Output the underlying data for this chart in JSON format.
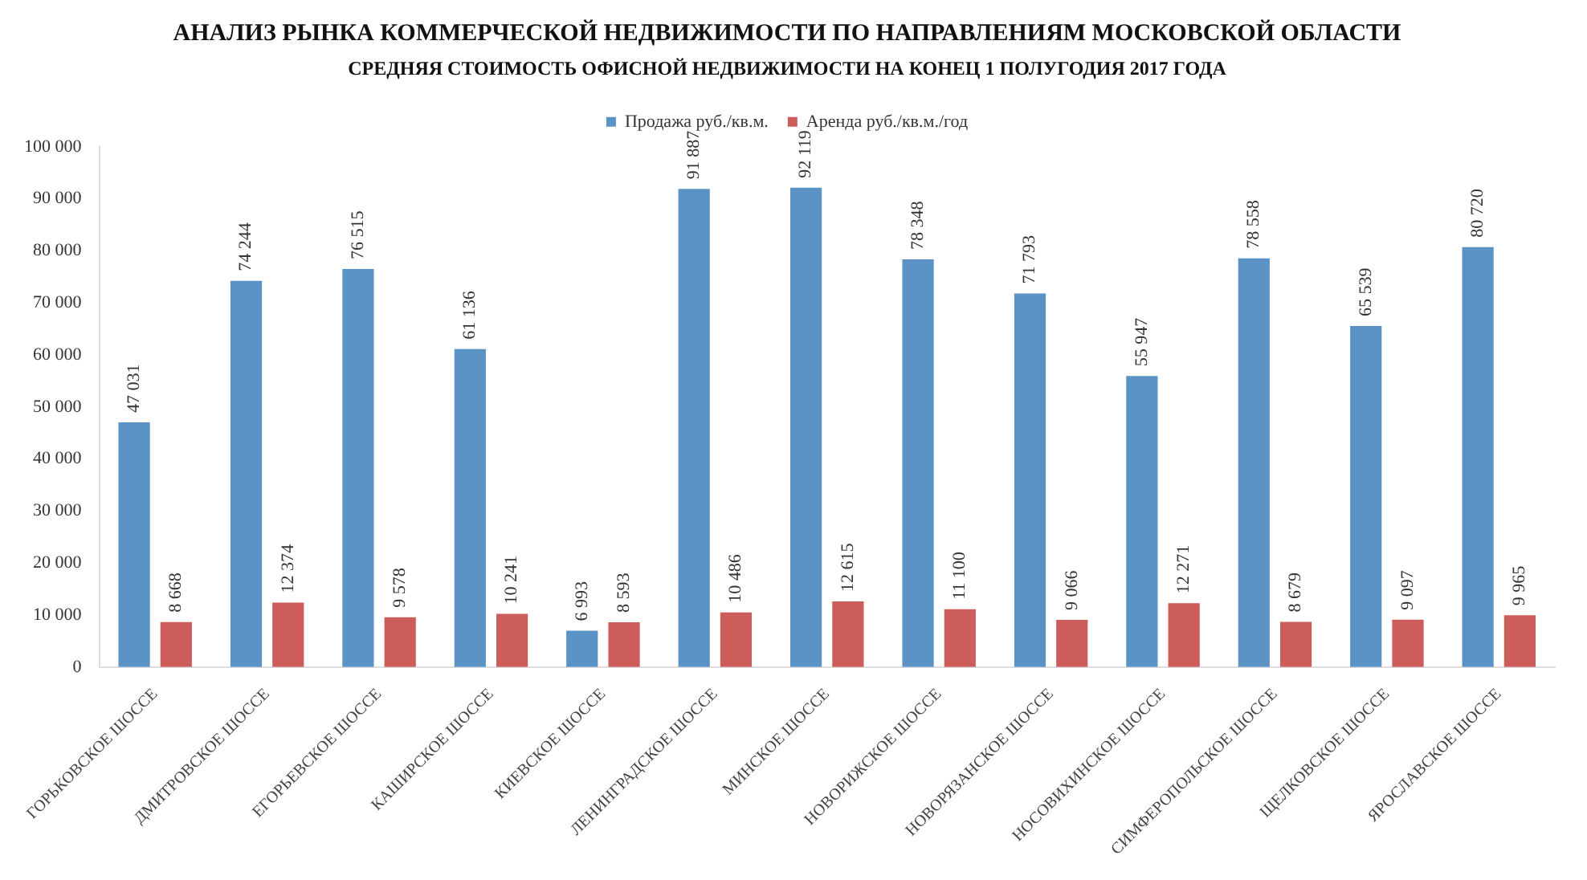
{
  "chart_data": {
    "type": "bar",
    "title": "АНАЛИЗ РЫНКА КОММЕРЧЕСКОЙ НЕДВИЖИМОСТИ ПО НАПРАВЛЕНИЯМ МОСКОВСКОЙ ОБЛАСТИ",
    "subtitle": "СРЕДНЯЯ СТОИМОСТЬ ОФИСНОЙ НЕДВИЖИМОСТИ НА КОНЕЦ 1 ПОЛУГОДИЯ 2017 ГОДА",
    "categories": [
      "ГОРЬКОВСКОЕ ШОССЕ",
      "ДМИТРОВСКОЕ ШОССЕ",
      "ЕГОРЬЕВСКОЕ ШОССЕ",
      "КАШИРСКОЕ ШОССЕ",
      "КИЕВСКОЕ ШОССЕ",
      "ЛЕНИНГРАДСКОЕ ШОССЕ",
      "МИНСКОЕ ШОССЕ",
      "НОВОРИЖСКОЕ ШОССЕ",
      "НОВОРЯЗАНСКОЕ ШОССЕ",
      "НОСОВИХИНСКОЕ ШОССЕ",
      "СИМФЕРОПОЛЬСКОЕ ШОССЕ",
      "ЩЕЛКОВСКОЕ ШОССЕ",
      "ЯРОСЛАВСКОЕ ШОССЕ"
    ],
    "series": [
      {
        "name": "Продажа руб./кв.м.",
        "color": "#5b93c7",
        "values": [
          47031,
          74244,
          76515,
          61136,
          6993,
          91887,
          92119,
          78348,
          71793,
          55947,
          78558,
          65539,
          80720
        ],
        "value_labels": [
          "47 031",
          "74 244",
          "76 515",
          "61 136",
          "6 993",
          "91 887",
          "92 119",
          "78 348",
          "71 793",
          "55 947",
          "78 558",
          "65 539",
          "80 720"
        ]
      },
      {
        "name": "Аренда руб./кв.м./год",
        "color": "#cd5d5b",
        "values": [
          8668,
          12374,
          9578,
          10241,
          8593,
          10486,
          12615,
          11100,
          9066,
          12271,
          8679,
          9097,
          9965
        ],
        "value_labels": [
          "8 668",
          "12 374",
          "9 578",
          "10 241",
          "8 593",
          "10 486",
          "12 615",
          "11 100",
          "9 066",
          "12 271",
          "8 679",
          "9 097",
          "9 965"
        ]
      }
    ],
    "ylim": [
      0,
      100000
    ],
    "yticks": [
      {
        "value": 0,
        "label": "0"
      },
      {
        "value": 10000,
        "label": "10 000"
      },
      {
        "value": 20000,
        "label": "20 000"
      },
      {
        "value": 30000,
        "label": "30 000"
      },
      {
        "value": 40000,
        "label": "40 000"
      },
      {
        "value": 50000,
        "label": "50 000"
      },
      {
        "value": 60000,
        "label": "60 000"
      },
      {
        "value": 70000,
        "label": "70 000"
      },
      {
        "value": 80000,
        "label": "80 000"
      },
      {
        "value": 90000,
        "label": "90 000"
      },
      {
        "value": 100000,
        "label": "100 000"
      }
    ],
    "grid": false,
    "legend": "top"
  }
}
